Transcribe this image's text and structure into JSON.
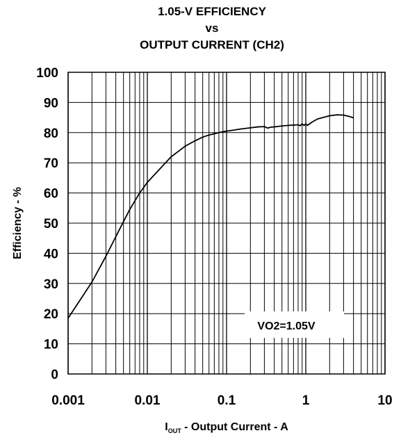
{
  "chart_data": {
    "type": "line",
    "title": [
      "1.05-V EFFICIENCY",
      "vs",
      "OUTPUT CURRENT (CH2)"
    ],
    "xlabel": {
      "sub_main": "I",
      "sub_script": "OUT",
      "rest": " - Output Current - A"
    },
    "ylabel": "Efficiency - %",
    "xscale": "log",
    "xlim": [
      0.001,
      10
    ],
    "ylim": [
      0,
      100
    ],
    "grid": true,
    "x_ticks": [
      {
        "value": 0.001,
        "label": "0.001"
      },
      {
        "value": 0.01,
        "label": "0.01"
      },
      {
        "value": 0.1,
        "label": "0.1"
      },
      {
        "value": 1,
        "label": "1"
      },
      {
        "value": 10,
        "label": "10"
      }
    ],
    "y_ticks": [
      {
        "value": 0,
        "label": "0"
      },
      {
        "value": 10,
        "label": "10"
      },
      {
        "value": 20,
        "label": "20"
      },
      {
        "value": 30,
        "label": "30"
      },
      {
        "value": 40,
        "label": "40"
      },
      {
        "value": 50,
        "label": "50"
      },
      {
        "value": 60,
        "label": "60"
      },
      {
        "value": 70,
        "label": "70"
      },
      {
        "value": 80,
        "label": "80"
      },
      {
        "value": 90,
        "label": "90"
      },
      {
        "value": 100,
        "label": "100"
      }
    ],
    "annotation": "VO2=1.05V",
    "series": [
      {
        "x": [
          0.001,
          0.0015,
          0.002,
          0.003,
          0.004,
          0.005,
          0.006,
          0.008,
          0.01,
          0.015,
          0.02,
          0.03,
          0.04,
          0.05,
          0.06,
          0.07,
          0.08,
          0.09,
          0.1,
          0.12,
          0.15,
          0.2,
          0.25,
          0.3,
          0.33,
          0.36,
          0.4,
          0.5,
          0.6,
          0.7,
          0.8,
          0.85,
          0.9,
          0.95,
          1.0,
          1.05,
          1.1,
          1.2,
          1.4,
          1.7,
          2.0,
          2.5,
          3.0,
          3.5,
          4.0
        ],
        "y": [
          18.5,
          25.5,
          30.5,
          39,
          45.5,
          50.5,
          54.5,
          60,
          63.5,
          68.5,
          72,
          75.5,
          77.3,
          78.5,
          79.2,
          79.6,
          80.0,
          80.3,
          80.5,
          80.8,
          81.2,
          81.6,
          81.9,
          82.0,
          81.5,
          81.8,
          81.9,
          82.2,
          82.4,
          82.5,
          82.6,
          82.3,
          82.9,
          82.4,
          82.9,
          82.4,
          82.8,
          83.5,
          84.5,
          85.1,
          85.6,
          85.9,
          85.8,
          85.4,
          84.9
        ]
      }
    ]
  }
}
